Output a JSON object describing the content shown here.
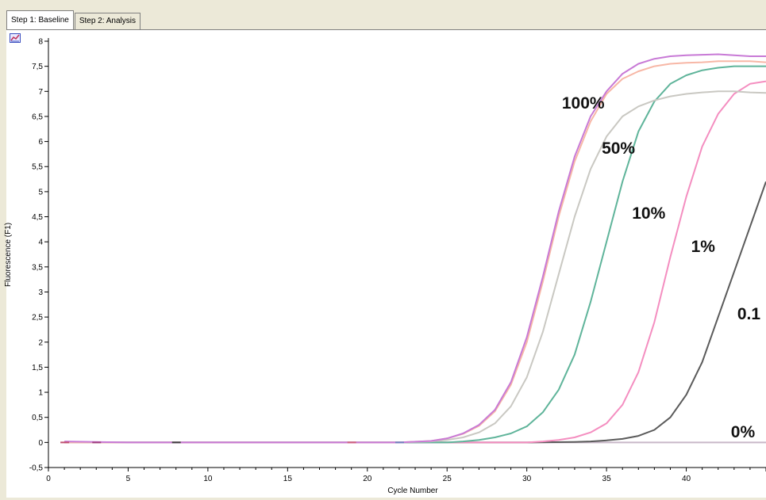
{
  "tabs": [
    {
      "label": "Step 1: Baseline",
      "active": true
    },
    {
      "label": "Step 2: Analysis",
      "active": false
    }
  ],
  "toolbar": {
    "icon": "chart-settings-icon"
  },
  "chart_data": {
    "type": "line",
    "title": "",
    "xlabel": "Cycle Number",
    "ylabel": "Fluorescence (F1)",
    "xlim": [
      0,
      45
    ],
    "ylim": [
      -0.5,
      8
    ],
    "x_ticks": [
      0,
      5,
      10,
      15,
      20,
      25,
      30,
      35,
      40
    ],
    "y_ticks": [
      -0.5,
      0,
      0.5,
      1,
      1.5,
      2,
      2.5,
      3,
      3.5,
      4,
      4.5,
      5,
      5.5,
      6,
      6.5,
      7,
      7.5,
      8
    ],
    "y_tick_labels": [
      "-0,5",
      "0",
      "0,5",
      "1",
      "1,5",
      "2",
      "2,5",
      "3",
      "3,5",
      "4",
      "4,5",
      "5",
      "5,5",
      "6",
      "6,5",
      "7",
      "7,5",
      "8"
    ],
    "grid": false,
    "series": [
      {
        "name": "100%",
        "color": "#c87ad6",
        "x": [
          1,
          5,
          10,
          15,
          20,
          22,
          24,
          25,
          26,
          27,
          28,
          29,
          30,
          31,
          32,
          33,
          34,
          35,
          36,
          37,
          38,
          39,
          40,
          41,
          42,
          43,
          44,
          45
        ],
        "y": [
          0.02,
          0.0,
          0.0,
          0.0,
          0.0,
          0.0,
          0.03,
          0.08,
          0.18,
          0.35,
          0.65,
          1.2,
          2.1,
          3.3,
          4.6,
          5.7,
          6.5,
          7.0,
          7.35,
          7.55,
          7.65,
          7.7,
          7.72,
          7.73,
          7.74,
          7.72,
          7.7,
          7.7
        ]
      },
      {
        "name": "",
        "color": "#f7b7a6",
        "x": [
          1,
          5,
          10,
          15,
          20,
          22,
          24,
          25,
          26,
          27,
          28,
          29,
          30,
          31,
          32,
          33,
          34,
          35,
          36,
          37,
          38,
          39,
          40,
          41,
          42,
          43,
          44,
          45
        ],
        "y": [
          0.0,
          0.0,
          0.0,
          0.0,
          0.0,
          0.0,
          0.03,
          0.08,
          0.17,
          0.33,
          0.62,
          1.15,
          2.0,
          3.2,
          4.5,
          5.6,
          6.4,
          6.95,
          7.25,
          7.4,
          7.5,
          7.55,
          7.57,
          7.58,
          7.6,
          7.6,
          7.6,
          7.58
        ]
      },
      {
        "name": "50%",
        "color": "#c9c8c2",
        "x": [
          1,
          5,
          10,
          15,
          20,
          22,
          24,
          25,
          26,
          27,
          28,
          29,
          30,
          31,
          32,
          33,
          34,
          35,
          36,
          37,
          38,
          39,
          40,
          41,
          42,
          43,
          44,
          45
        ],
        "y": [
          0.0,
          0.0,
          0.0,
          0.0,
          0.0,
          0.0,
          0.02,
          0.05,
          0.1,
          0.2,
          0.38,
          0.72,
          1.3,
          2.2,
          3.35,
          4.5,
          5.45,
          6.1,
          6.5,
          6.7,
          6.82,
          6.9,
          6.95,
          6.98,
          7.0,
          7.0,
          6.98,
          6.97
        ]
      },
      {
        "name": "10%",
        "color": "#5fb49a",
        "x": [
          1,
          5,
          10,
          15,
          20,
          25,
          26,
          27,
          28,
          29,
          30,
          31,
          32,
          33,
          34,
          35,
          36,
          37,
          38,
          39,
          40,
          41,
          42,
          43,
          44,
          45
        ],
        "y": [
          0.0,
          0.0,
          0.0,
          0.0,
          0.0,
          0.0,
          0.02,
          0.05,
          0.1,
          0.18,
          0.32,
          0.6,
          1.05,
          1.75,
          2.8,
          4.0,
          5.2,
          6.2,
          6.8,
          7.15,
          7.32,
          7.42,
          7.47,
          7.5,
          7.5,
          7.5
        ]
      },
      {
        "name": "1%",
        "color": "#f48ec0",
        "x": [
          1,
          5,
          10,
          15,
          20,
          25,
          30,
          31,
          32,
          33,
          34,
          35,
          36,
          37,
          38,
          39,
          40,
          41,
          42,
          43,
          44,
          45
        ],
        "y": [
          0.0,
          0.0,
          0.0,
          0.0,
          0.0,
          0.0,
          0.0,
          0.02,
          0.05,
          0.1,
          0.2,
          0.38,
          0.75,
          1.4,
          2.4,
          3.7,
          4.9,
          5.9,
          6.55,
          6.95,
          7.15,
          7.2
        ]
      },
      {
        "name": "0.1",
        "color": "#5a5a5a",
        "x": [
          1,
          5,
          10,
          15,
          20,
          25,
          30,
          33,
          34,
          35,
          36,
          37,
          38,
          39,
          40,
          41,
          42,
          43,
          44,
          45
        ],
        "y": [
          0.0,
          0.0,
          0.0,
          0.0,
          0.0,
          0.0,
          0.0,
          0.01,
          0.02,
          0.04,
          0.07,
          0.13,
          0.25,
          0.5,
          0.95,
          1.6,
          2.5,
          3.4,
          4.3,
          5.2
        ]
      },
      {
        "name": "0%",
        "color": "#c8b8c8",
        "x": [
          1,
          5,
          10,
          15,
          20,
          25,
          30,
          35,
          40,
          45
        ],
        "y": [
          0.0,
          0.0,
          0.0,
          0.0,
          0.0,
          0.0,
          0.0,
          0.0,
          0.0,
          0.0
        ]
      }
    ],
    "annotations": [
      {
        "text": "100%",
        "x": 32.2,
        "y": 6.75
      },
      {
        "text": "50%",
        "x": 34.7,
        "y": 5.85
      },
      {
        "text": "10%",
        "x": 36.6,
        "y": 4.55
      },
      {
        "text": "1%",
        "x": 40.3,
        "y": 3.9
      },
      {
        "text": "0.1",
        "x": 43.2,
        "y": 2.55
      },
      {
        "text": "0%",
        "x": 42.8,
        "y": 0.2
      }
    ]
  }
}
